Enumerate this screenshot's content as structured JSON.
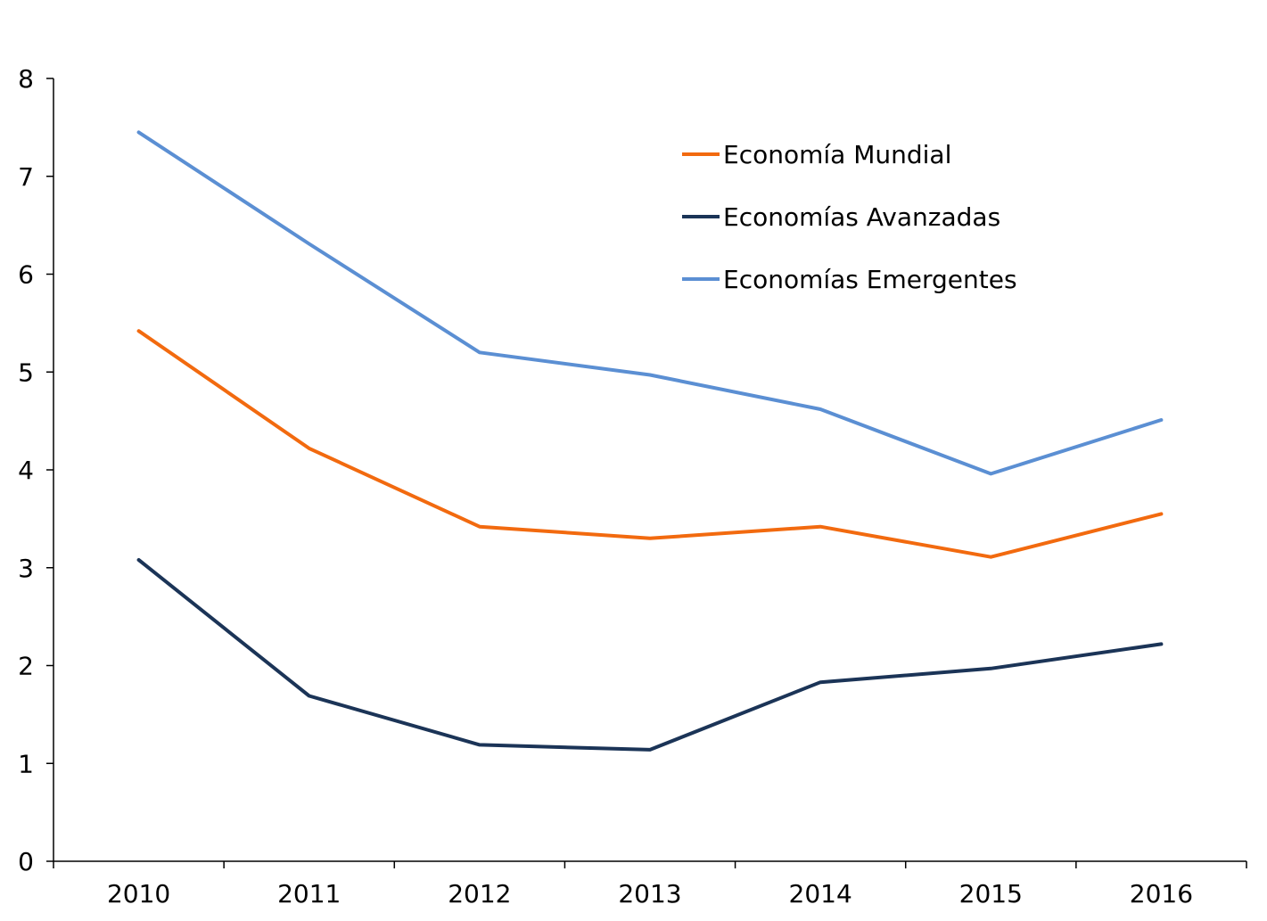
{
  "chart_data": {
    "type": "line",
    "categories": [
      "2010",
      "2011",
      "2012",
      "2013",
      "2014",
      "2015",
      "2016"
    ],
    "y_ticks": [
      "0",
      "1",
      "2",
      "3",
      "4",
      "5",
      "6",
      "7",
      "8"
    ],
    "ylim": [
      0,
      8
    ],
    "grid": false,
    "legend_position": "top-right",
    "title": "",
    "xlabel": "",
    "ylabel": "",
    "series": [
      {
        "name": "Economía Mundial",
        "color": "#f26a0f",
        "values": [
          5.42,
          4.22,
          3.42,
          3.3,
          3.42,
          3.11,
          3.55
        ]
      },
      {
        "name": "Economías Avanzadas",
        "color": "#1b3457",
        "values": [
          3.08,
          1.69,
          1.19,
          1.14,
          1.83,
          1.97,
          2.22
        ]
      },
      {
        "name": "Economías Emergentes",
        "color": "#5b8fd3",
        "values": [
          7.45,
          6.31,
          5.2,
          4.97,
          4.62,
          3.96,
          4.51
        ]
      }
    ]
  }
}
